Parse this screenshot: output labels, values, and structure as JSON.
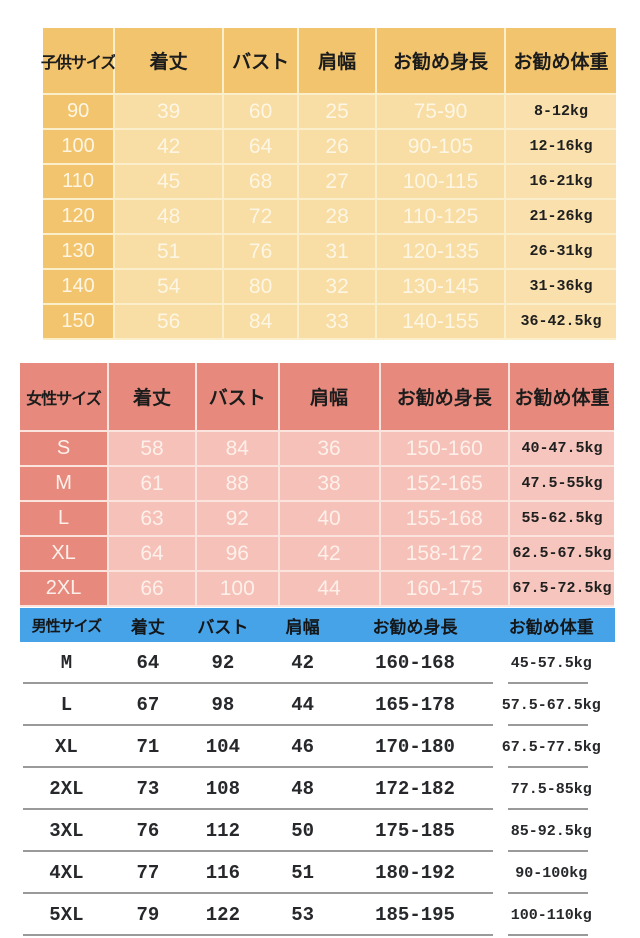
{
  "chart_data": [
    {
      "type": "table",
      "title": "子供サイズ",
      "columns": [
        "子供サイズ",
        "着丈",
        "バスト",
        "肩幅",
        "お勧め身長",
        "お勧め体重"
      ],
      "rows": [
        [
          "90",
          "39",
          "60",
          "25",
          "75-90",
          "8-12kg"
        ],
        [
          "100",
          "42",
          "64",
          "26",
          "90-105",
          "12-16kg"
        ],
        [
          "110",
          "45",
          "68",
          "27",
          "100-115",
          "16-21kg"
        ],
        [
          "120",
          "48",
          "72",
          "28",
          "110-125",
          "21-26kg"
        ],
        [
          "130",
          "51",
          "76",
          "31",
          "120-135",
          "26-31kg"
        ],
        [
          "140",
          "54",
          "80",
          "32",
          "130-145",
          "31-36kg"
        ],
        [
          "150",
          "56",
          "84",
          "33",
          "140-155",
          "36-42.5kg"
        ]
      ],
      "colors": {
        "header_bg": "#f2c46d",
        "row_bg": "#f8dda4",
        "grid": "#fbeecb",
        "value_text": "#fdf6e4",
        "kg_text": "#1f1f1f",
        "header_text": "#1c1c1c"
      }
    },
    {
      "type": "table",
      "title": "女性サイズ",
      "columns": [
        "女性サイズ",
        "着丈",
        "バスト",
        "肩幅",
        "お勧め身長",
        "お勧め体重"
      ],
      "rows": [
        [
          "S",
          "58",
          "84",
          "36",
          "150-160",
          "40-47.5kg"
        ],
        [
          "M",
          "61",
          "88",
          "38",
          "152-165",
          "47.5-55kg"
        ],
        [
          "L",
          "63",
          "92",
          "40",
          "155-168",
          "55-62.5kg"
        ],
        [
          "XL",
          "64",
          "96",
          "42",
          "158-172",
          "62.5-67.5kg"
        ],
        [
          "2XL",
          "66",
          "100",
          "44",
          "160-175",
          "67.5-72.5kg"
        ]
      ],
      "colors": {
        "header_bg": "#e78a7d",
        "row_bg": "#f5c1b8",
        "grid": "#fce4de",
        "value_text": "#fdf0ea",
        "kg_text": "#1f1f1f",
        "header_text": "#1c1c1c"
      }
    },
    {
      "type": "table",
      "title": "男性サイズ",
      "columns": [
        "男性サイズ",
        "着丈",
        "バスト",
        "肩幅",
        "お勧め身長",
        "お勧め体重"
      ],
      "rows": [
        [
          "M",
          "64",
          "92",
          "42",
          "160-168",
          "45-57.5kg"
        ],
        [
          "L",
          "67",
          "98",
          "44",
          "165-178",
          "57.5-67.5kg"
        ],
        [
          "XL",
          "71",
          "104",
          "46",
          "170-180",
          "67.5-77.5kg"
        ],
        [
          "2XL",
          "73",
          "108",
          "48",
          "172-182",
          "77.5-85kg"
        ],
        [
          "3XL",
          "76",
          "112",
          "50",
          "175-185",
          "85-92.5kg"
        ],
        [
          "4XL",
          "77",
          "116",
          "51",
          "180-192",
          "90-100kg"
        ],
        [
          "5XL",
          "79",
          "122",
          "53",
          "185-195",
          "100-110kg"
        ]
      ],
      "colors": {
        "header_bg": "#47a3e8",
        "row_bg": "#ffffff",
        "separator": "#9a9a9a",
        "value_text": "#26282b",
        "header_text": "#14171a"
      }
    }
  ]
}
